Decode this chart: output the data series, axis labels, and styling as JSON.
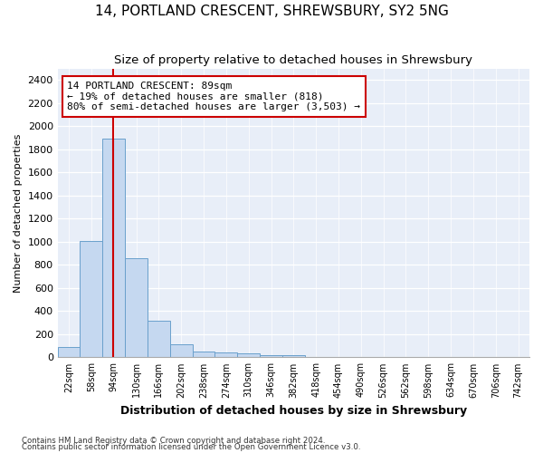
{
  "title": "14, PORTLAND CRESCENT, SHREWSBURY, SY2 5NG",
  "subtitle": "Size of property relative to detached houses in Shrewsbury",
  "xlabel": "Distribution of detached houses by size in Shrewsbury",
  "ylabel": "Number of detached properties",
  "bin_labels": [
    "22sqm",
    "58sqm",
    "94sqm",
    "130sqm",
    "166sqm",
    "202sqm",
    "238sqm",
    "274sqm",
    "310sqm",
    "346sqm",
    "382sqm",
    "418sqm",
    "454sqm",
    "490sqm",
    "526sqm",
    "562sqm",
    "598sqm",
    "634sqm",
    "670sqm",
    "706sqm",
    "742sqm"
  ],
  "bar_values": [
    90,
    1010,
    1890,
    860,
    320,
    110,
    50,
    40,
    35,
    20,
    20,
    0,
    0,
    0,
    0,
    0,
    0,
    0,
    0,
    0,
    0
  ],
  "bar_color": "#c5d8f0",
  "bar_edge_color": "#6aa0cc",
  "red_line_x": 1.98,
  "annotation_text": "14 PORTLAND CRESCENT: 89sqm\n← 19% of detached houses are smaller (818)\n80% of semi-detached houses are larger (3,503) →",
  "annotation_box_color": "#ffffff",
  "annotation_box_edge": "#cc0000",
  "footer_line1": "Contains HM Land Registry data © Crown copyright and database right 2024.",
  "footer_line2": "Contains public sector information licensed under the Open Government Licence v3.0.",
  "ylim": [
    0,
    2500
  ],
  "yticks": [
    0,
    200,
    400,
    600,
    800,
    1000,
    1200,
    1400,
    1600,
    1800,
    2000,
    2200,
    2400
  ],
  "bg_color": "#e8eef8",
  "title_fontsize": 11,
  "subtitle_fontsize": 9.5,
  "xlabel_fontsize": 9,
  "ylabel_fontsize": 8
}
